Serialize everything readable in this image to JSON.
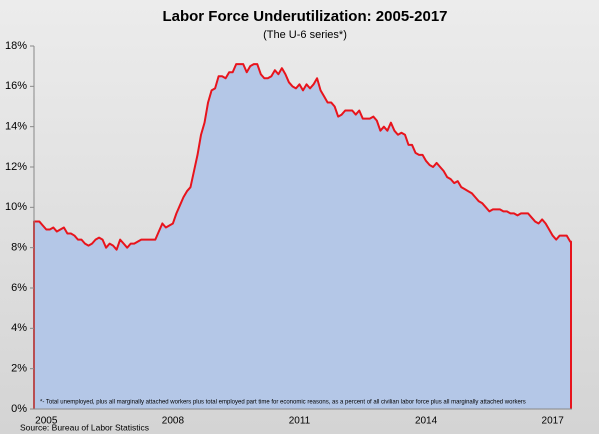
{
  "chart_data": {
    "type": "area",
    "title": "Labor Force Underutilization:  2005-2017",
    "subtitle": "(The U-6 series*)",
    "footnote": "*- Total unemployed, plus all marginally attached workers plus total employed part time for economic reasons, as a percent of all civilian labor force plus all marginally attached workers",
    "source": "Source: Bureau of Labor Statistics",
    "categories": [
      null,
      null,
      null,
      "2005",
      null,
      null,
      null,
      null,
      null,
      null,
      null,
      null,
      null,
      null,
      null,
      null,
      null,
      null,
      null,
      null,
      null,
      null,
      null,
      null,
      null,
      null,
      null,
      null,
      null,
      null,
      null,
      null,
      null,
      null,
      null,
      null,
      null,
      null,
      null,
      "2008",
      null,
      null,
      null,
      null,
      null,
      null,
      null,
      null,
      null,
      null,
      null,
      null,
      null,
      null,
      null,
      null,
      null,
      null,
      null,
      null,
      null,
      null,
      null,
      null,
      null,
      null,
      null,
      null,
      null,
      null,
      null,
      null,
      null,
      null,
      null,
      "2011",
      null,
      null,
      null,
      null,
      null,
      null,
      null,
      null,
      null,
      null,
      null,
      null,
      null,
      null,
      null,
      null,
      null,
      null,
      null,
      null,
      null,
      null,
      null,
      null,
      null,
      null,
      null,
      null,
      null,
      null,
      null,
      null,
      null,
      null,
      null,
      "2014",
      null,
      null,
      null,
      null,
      null,
      null,
      null,
      null,
      null,
      null,
      null,
      null,
      null,
      null,
      null,
      null,
      null,
      null,
      null,
      null,
      null,
      null,
      null,
      null,
      null,
      null,
      null,
      null,
      null,
      null,
      null,
      null,
      null,
      null,
      null,
      "2017",
      null,
      null,
      null,
      null,
      null
    ],
    "series": [
      {
        "name": "U-6",
        "color": "#e8141c",
        "fill": "#b4c7e7",
        "values": [
          9.3,
          9.3,
          9.1,
          8.9,
          8.9,
          9.0,
          8.8,
          8.9,
          9.0,
          8.7,
          8.7,
          8.6,
          8.4,
          8.4,
          8.2,
          8.1,
          8.2,
          8.4,
          8.5,
          8.4,
          8.0,
          8.2,
          8.1,
          7.9,
          8.4,
          8.2,
          8.0,
          8.2,
          8.2,
          8.3,
          8.4,
          8.4,
          8.4,
          8.4,
          8.4,
          8.8,
          9.2,
          9.0,
          9.1,
          9.2,
          9.7,
          10.1,
          10.5,
          10.8,
          11.0,
          11.8,
          12.6,
          13.6,
          14.2,
          15.2,
          15.8,
          15.9,
          16.5,
          16.5,
          16.4,
          16.7,
          16.7,
          17.1,
          17.1,
          17.1,
          16.7,
          17.0,
          17.1,
          17.1,
          16.6,
          16.4,
          16.4,
          16.5,
          16.8,
          16.6,
          16.9,
          16.6,
          16.2,
          16.0,
          15.9,
          16.1,
          15.8,
          16.1,
          15.9,
          16.1,
          16.4,
          15.8,
          15.5,
          15.2,
          15.2,
          15.0,
          14.5,
          14.6,
          14.8,
          14.8,
          14.8,
          14.6,
          14.8,
          14.4,
          14.4,
          14.4,
          14.5,
          14.3,
          13.8,
          14.0,
          13.8,
          14.2,
          13.8,
          13.6,
          13.7,
          13.6,
          13.1,
          13.1,
          12.7,
          12.6,
          12.6,
          12.3,
          12.1,
          12.0,
          12.2,
          12.0,
          11.8,
          11.5,
          11.4,
          11.2,
          11.3,
          11.0,
          10.9,
          10.8,
          10.7,
          10.5,
          10.3,
          10.2,
          10.0,
          9.8,
          9.9,
          9.9,
          9.9,
          9.8,
          9.8,
          9.7,
          9.7,
          9.6,
          9.7,
          9.7,
          9.7,
          9.5,
          9.3,
          9.2,
          9.4,
          9.2,
          8.9,
          8.6,
          8.4,
          8.6,
          8.6,
          8.6,
          8.3
        ]
      }
    ],
    "ylim": [
      0,
      18
    ],
    "yticks": [
      {
        "value": 0,
        "label": "0%"
      },
      {
        "value": 2,
        "label": "2%"
      },
      {
        "value": 4,
        "label": "4%"
      },
      {
        "value": 6,
        "label": "6%"
      },
      {
        "value": 8,
        "label": "8%"
      },
      {
        "value": 10,
        "label": "10%"
      },
      {
        "value": 12,
        "label": "12%"
      },
      {
        "value": 14,
        "label": "14%"
      },
      {
        "value": 16,
        "label": "16%"
      },
      {
        "value": 18,
        "label": "18%"
      }
    ]
  }
}
